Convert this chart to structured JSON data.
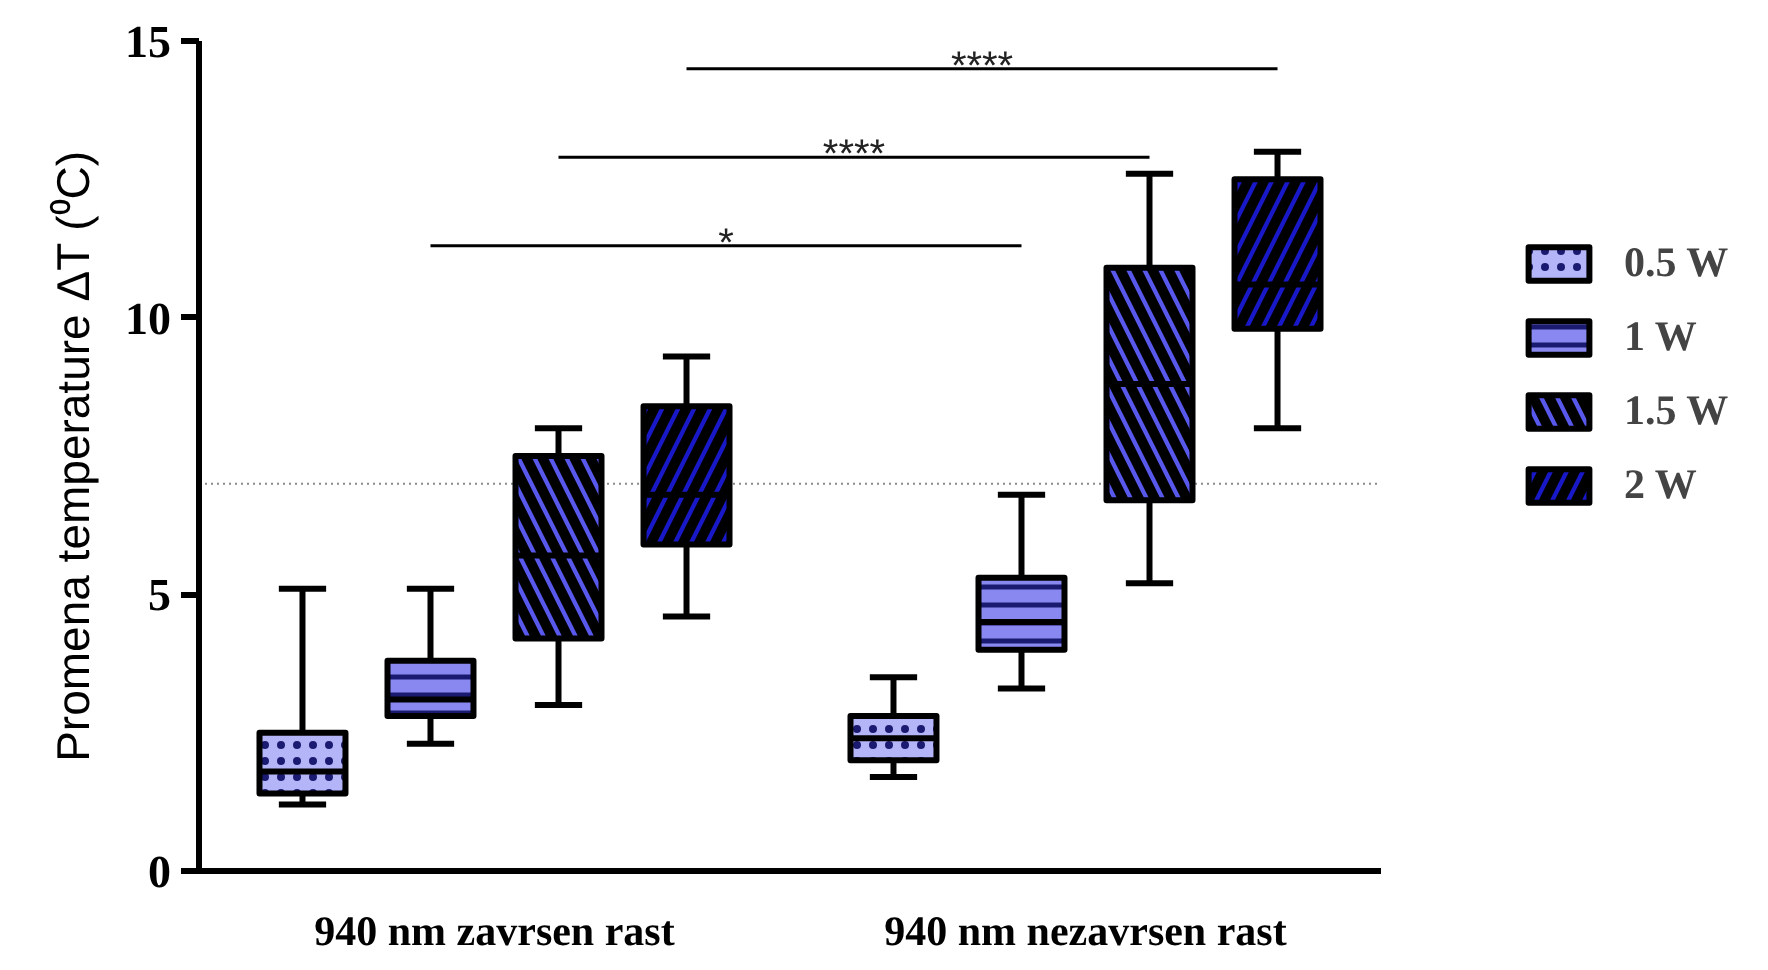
{
  "chart_data": {
    "type": "box",
    "categories": [
      "940 nm zavrsen rast",
      "940 nm nezavrsen rast"
    ],
    "ylabel": "Promena temperature ΔT (⁰C)",
    "ylim": [
      0,
      15
    ],
    "yticks": [
      0,
      5,
      10,
      15
    ],
    "legend": "right",
    "series": [
      {
        "name": "0.5 W",
        "color": "#b4b4f8",
        "boxes": [
          {
            "low": 1.2,
            "q1": 1.4,
            "median": 1.8,
            "q3": 2.5,
            "high": 5.1
          },
          {
            "low": 1.7,
            "q1": 2.0,
            "median": 2.4,
            "q3": 2.8,
            "high": 3.5
          }
        ]
      },
      {
        "name": "1 W",
        "color": "#8888f0",
        "boxes": [
          {
            "low": 2.3,
            "q1": 2.8,
            "median": 3.1,
            "q3": 3.8,
            "high": 5.1
          },
          {
            "low": 3.3,
            "q1": 4.0,
            "median": 4.5,
            "q3": 5.3,
            "high": 6.8
          }
        ]
      },
      {
        "name": "1.5 W",
        "color": "#5858ec",
        "boxes": [
          {
            "low": 3.0,
            "q1": 4.2,
            "median": 5.7,
            "q3": 7.5,
            "high": 8.0
          },
          {
            "low": 5.2,
            "q1": 6.7,
            "median": 8.8,
            "q3": 10.9,
            "high": 12.6
          }
        ]
      },
      {
        "name": "2 W",
        "color": "#1818c8",
        "boxes": [
          {
            "low": 4.6,
            "q1": 5.9,
            "median": 6.8,
            "q3": 8.4,
            "high": 9.3
          },
          {
            "low": 8.0,
            "q1": 9.8,
            "median": 10.6,
            "q3": 12.5,
            "high": 13.0
          }
        ]
      }
    ],
    "ref_lines": [
      {
        "axis": "y",
        "value": 7,
        "color": "#8a8a8a",
        "line_style": "dotted"
      }
    ],
    "annotations": [
      "*",
      "****",
      "****"
    ]
  }
}
